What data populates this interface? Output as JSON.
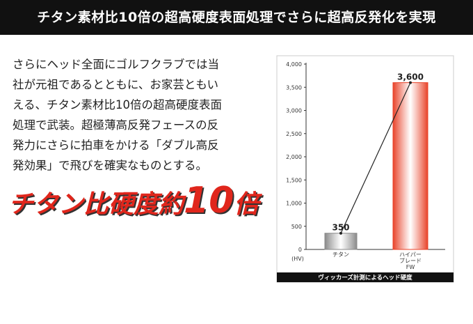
{
  "header": {
    "title": "チタン素材比10倍の超高硬度表面処理でさらに超高反発化を実現"
  },
  "body": {
    "lines": [
      "さらにヘッド全面にゴルフクラブでは当",
      "社が元祖であるとともに、お家芸ともい",
      "える、チタン素材比10倍の超高硬度表面",
      "処理で武装。超極薄高反発フェースの反",
      "発力にさらに拍車をかける「ダブル高反",
      "発効果」で飛びを確実なものとする。"
    ],
    "headline": [
      "チタン比硬度約",
      "10",
      "倍"
    ]
  },
  "chart_data": {
    "type": "bar",
    "categories": [
      "チタン",
      "ハイパー\nブレード\nFW"
    ],
    "series": [
      {
        "name": "ヘッド硬度",
        "colors": [
          "#8a8a8a",
          "#e8432a"
        ],
        "values": [
          350,
          3600
        ],
        "value_labels": [
          "350",
          "3,600"
        ]
      }
    ],
    "ylim": [
      0,
      4000
    ],
    "yticks": [
      0,
      500,
      {
        "value": 1000,
        "label": "1,000"
      },
      {
        "value": 1500,
        "label": "1,500"
      },
      {
        "value": 2000,
        "label": "2,000"
      },
      {
        "value": 2500,
        "label": "2,500"
      },
      {
        "value": 3000,
        "label": "3,000"
      },
      {
        "value": 3500,
        "label": "3,500"
      },
      {
        "value": 4000,
        "label": "4,000"
      }
    ],
    "y_unit": "(HV)",
    "caption": "ヴィッカーズ計測によるヘッド硬度",
    "connector_line": true
  }
}
